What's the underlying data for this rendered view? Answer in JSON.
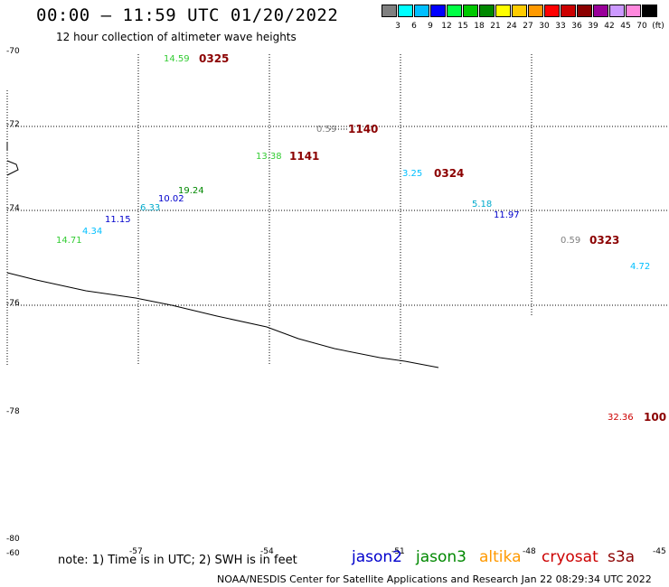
{
  "header": {
    "title": "00:00 – 11:59 UTC 01/20/2022",
    "subtitle": "12 hour collection of altimeter wave heights"
  },
  "legend": {
    "unit": "(ft)",
    "colors": [
      "#808080",
      "#00ffff",
      "#00bfff",
      "#0000ff",
      "#00ff44",
      "#00c800",
      "#008800",
      "#ffff00",
      "#ffcc00",
      "#ff9900",
      "#ff0000",
      "#cc0000",
      "#8b0000",
      "#990099",
      "#cc99ff",
      "#ff88dd",
      "#000000"
    ],
    "labels": [
      "3",
      "6",
      "9",
      "12",
      "15",
      "18",
      "21",
      "24",
      "27",
      "30",
      "33",
      "36",
      "39",
      "42",
      "45",
      "70"
    ]
  },
  "latitudes": [
    "-70",
    "-72",
    "-74",
    "-76",
    "-78",
    "-80",
    "-60"
  ],
  "longitudes": [
    "-57",
    "-54",
    "-51",
    "-48",
    "-45"
  ],
  "observations": [
    {
      "text": "14.59",
      "color": "#33cc33"
    },
    {
      "text": "0.59",
      "color": "#808080"
    },
    {
      "text": "13.38",
      "color": "#33cc33"
    },
    {
      "text": "3.25",
      "color": "#00bfff"
    },
    {
      "text": "19.24",
      "color": "#008800"
    },
    {
      "text": "10.02",
      "color": "#0000cc"
    },
    {
      "text": "6.33",
      "color": "#00aacc"
    },
    {
      "text": "11.15",
      "color": "#0000cc"
    },
    {
      "text": "4.34",
      "color": "#00bfff"
    },
    {
      "text": "14.71",
      "color": "#33cc33"
    },
    {
      "text": "5.18",
      "color": "#00aacc"
    },
    {
      "text": "11.97",
      "color": "#0000cc"
    },
    {
      "text": "0.59",
      "color": "#808080"
    },
    {
      "text": "4.72",
      "color": "#00bfff"
    },
    {
      "text": "32.36",
      "color": "#cc0000"
    }
  ],
  "pass_times": [
    "0325",
    "1140",
    "1141",
    "0324",
    "0323",
    "100"
  ],
  "note": "note: 1) Time is in UTC; 2) SWH is in feet",
  "satellites": [
    {
      "name": "jason2",
      "color": "#0000cc"
    },
    {
      "name": "jason3",
      "color": "#008800"
    },
    {
      "name": "altika",
      "color": "#ff9900"
    },
    {
      "name": "cryosat",
      "color": "#cc0000"
    },
    {
      "name": "s3a",
      "color": "#8b0000"
    }
  ],
  "footer": "NOAA/NESDIS Center for Satellite Applications and Research    Jan 22 08:29:34 UTC 2022"
}
